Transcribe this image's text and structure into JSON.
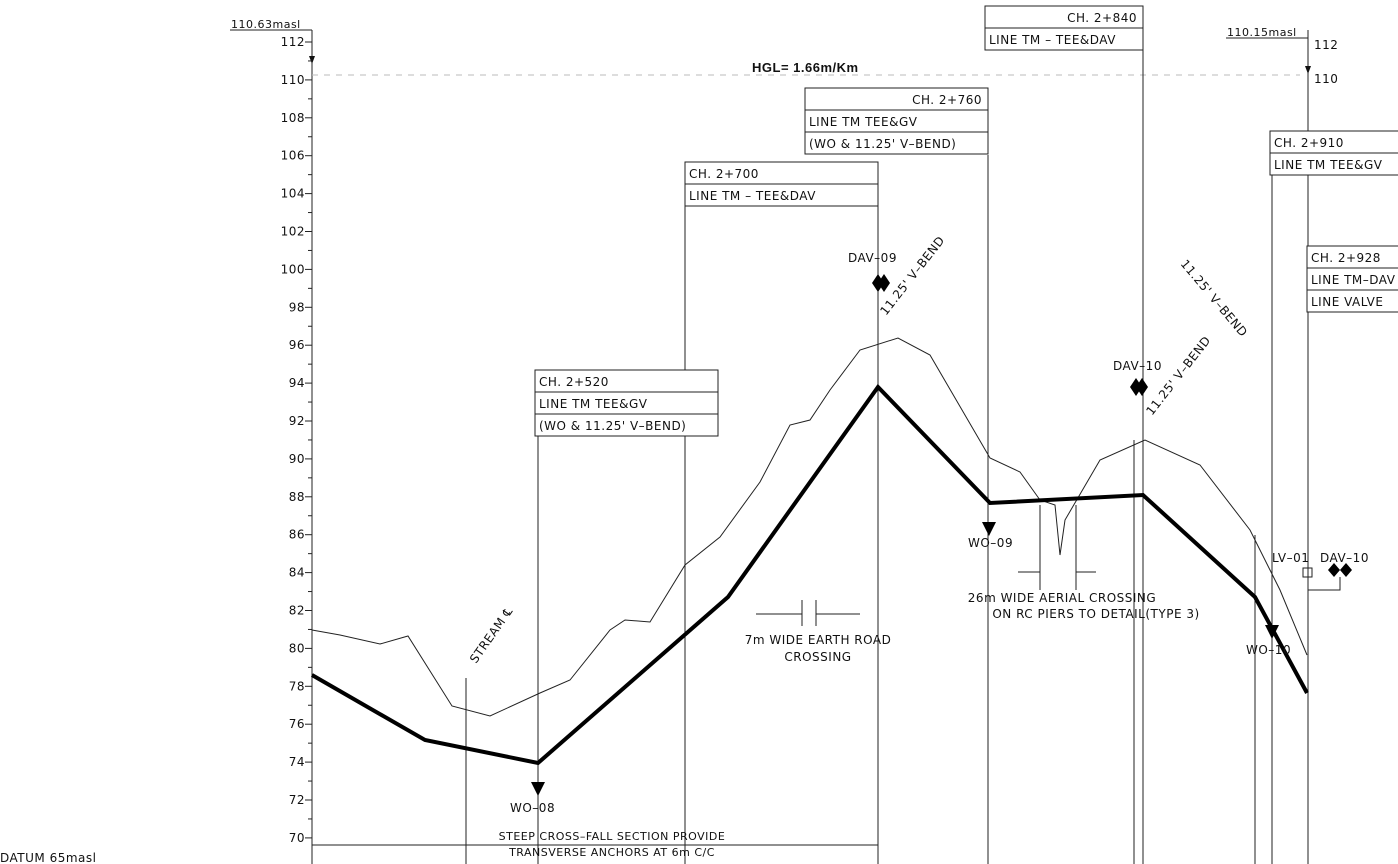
{
  "drawing": {
    "left_level": "110.63masl",
    "right_level": "110.15masl",
    "hgl": "HGL= 1.66m/Km",
    "datum": "DATUM 65masl",
    "left_axis_labels": [
      "112",
      "110",
      "108",
      "106",
      "104",
      "102",
      "100",
      "98",
      "96",
      "94",
      "92",
      "90",
      "88",
      "86",
      "84",
      "82",
      "80",
      "78",
      "76",
      "74",
      "72",
      "70"
    ],
    "right_axis_labels": [
      "112",
      "110"
    ],
    "boxes": [
      {
        "lines": [
          "CH. 2+840",
          "LINE TM  –  TEE&DAV"
        ]
      },
      {
        "lines": [
          "CH. 2+760",
          "LINE TM TEE&GV",
          "(WO & 11.25' V–BEND)"
        ]
      },
      {
        "lines": [
          "CH. 2+700",
          "LINE TM  –  TEE&DAV"
        ]
      },
      {
        "lines": [
          "CH. 2+520",
          "LINE TM TEE&GV",
          "(WO & 11.25' V–BEND)"
        ]
      },
      {
        "lines": [
          "CH. 2+910",
          "LINE TM TEE&GV"
        ]
      },
      {
        "lines": [
          "CH. 2+928",
          "LINE TM–DAV",
          "LINE VALVE"
        ]
      }
    ],
    "markers": [
      "DAV–09",
      "DAV–10",
      "WO–08",
      "WO–09",
      "WO–10",
      "LV–01",
      "DAV–10"
    ],
    "stream": "STREAM ℄",
    "bend": "11.25' V–BEND",
    "notes": {
      "road": [
        "7m WIDE EARTH ROAD",
        "CROSSING"
      ],
      "aerial": [
        "26m WIDE AERIAL CROSSING",
        "ON RC PIERS TO DETAIL(TYPE 3)"
      ],
      "steep": [
        "STEEP CROSS–FALL SECTION PROVIDE",
        "TRANSVERSE ANCHORS AT 6m C/C"
      ]
    }
  }
}
